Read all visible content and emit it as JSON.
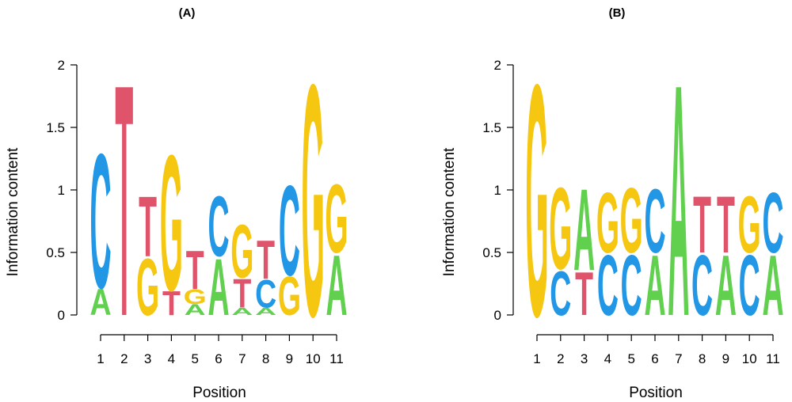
{
  "colors": {
    "A": "#61D04F",
    "C": "#2297E6",
    "G": "#F5C710",
    "T": "#DF536B"
  },
  "chart_data": [
    {
      "type": "sequence-logo",
      "title": "(A)",
      "xlabel": "Position",
      "ylabel": "Information content",
      "ylim": [
        0,
        2
      ],
      "yticks": [
        0,
        0.5,
        1,
        1.5,
        2
      ],
      "ytick_labels": [
        "0",
        "0.5",
        "1",
        "1.5",
        "2"
      ],
      "categories": [
        "1",
        "2",
        "3",
        "4",
        "5",
        "6",
        "7",
        "8",
        "9",
        "10",
        "11"
      ],
      "positions": [
        {
          "stack": [
            {
              "letter": "A",
              "height": 0.22
            },
            {
              "letter": "C",
              "height": 1.12
            }
          ]
        },
        {
          "stack": [
            {
              "letter": "T",
              "height": 1.93
            }
          ]
        },
        {
          "stack": [
            {
              "letter": "G",
              "height": 0.47
            },
            {
              "letter": "T",
              "height": 0.5
            }
          ]
        },
        {
          "stack": [
            {
              "letter": "T",
              "height": 0.2
            },
            {
              "letter": "G",
              "height": 1.13
            }
          ]
        },
        {
          "stack": [
            {
              "letter": "A",
              "height": 0.09
            },
            {
              "letter": "G",
              "height": 0.12
            },
            {
              "letter": "T",
              "height": 0.32
            }
          ]
        },
        {
          "stack": [
            {
              "letter": "A",
              "height": 0.47
            },
            {
              "letter": "C",
              "height": 0.5
            }
          ]
        },
        {
          "stack": [
            {
              "letter": "A",
              "height": 0.06
            },
            {
              "letter": "T",
              "height": 0.24
            },
            {
              "letter": "G",
              "height": 0.44
            }
          ]
        },
        {
          "stack": [
            {
              "letter": "A",
              "height": 0.06
            },
            {
              "letter": "C",
              "height": 0.23
            },
            {
              "letter": "T",
              "height": 0.32
            }
          ]
        },
        {
          "stack": [
            {
              "letter": "G",
              "height": 0.32
            },
            {
              "letter": "C",
              "height": 0.75
            }
          ]
        },
        {
          "stack": [
            {
              "letter": "G",
              "height": 1.93
            }
          ]
        },
        {
          "stack": [
            {
              "letter": "A",
              "height": 0.5
            },
            {
              "letter": "G",
              "height": 0.57
            }
          ]
        }
      ]
    },
    {
      "type": "sequence-logo",
      "title": "(B)",
      "xlabel": "Position",
      "ylabel": "Information content",
      "ylim": [
        0,
        2
      ],
      "yticks": [
        0,
        0.5,
        1,
        1.5,
        2
      ],
      "ytick_labels": [
        "0",
        "0.5",
        "1",
        "1.5",
        "2"
      ],
      "categories": [
        "1",
        "2",
        "3",
        "4",
        "5",
        "6",
        "7",
        "8",
        "9",
        "10",
        "11"
      ],
      "positions": [
        {
          "stack": [
            {
              "letter": "G",
              "height": 1.93
            }
          ]
        },
        {
          "stack": [
            {
              "letter": "C",
              "height": 0.37
            },
            {
              "letter": "G",
              "height": 0.68
            }
          ]
        },
        {
          "stack": [
            {
              "letter": "T",
              "height": 0.36
            },
            {
              "letter": "A",
              "height": 0.68
            }
          ]
        },
        {
          "stack": [
            {
              "letter": "C",
              "height": 0.5
            },
            {
              "letter": "G",
              "height": 0.5
            }
          ]
        },
        {
          "stack": [
            {
              "letter": "C",
              "height": 0.5
            },
            {
              "letter": "G",
              "height": 0.54
            }
          ]
        },
        {
          "stack": [
            {
              "letter": "A",
              "height": 0.5
            },
            {
              "letter": "C",
              "height": 0.53
            }
          ]
        },
        {
          "stack": [
            {
              "letter": "A",
              "height": 1.93
            }
          ]
        },
        {
          "stack": [
            {
              "letter": "C",
              "height": 0.5
            },
            {
              "letter": "T",
              "height": 0.47
            }
          ]
        },
        {
          "stack": [
            {
              "letter": "A",
              "height": 0.5
            },
            {
              "letter": "T",
              "height": 0.47
            }
          ]
        },
        {
          "stack": [
            {
              "letter": "C",
              "height": 0.5
            },
            {
              "letter": "G",
              "height": 0.47
            }
          ]
        },
        {
          "stack": [
            {
              "letter": "A",
              "height": 0.5
            },
            {
              "letter": "C",
              "height": 0.5
            }
          ]
        }
      ]
    }
  ]
}
